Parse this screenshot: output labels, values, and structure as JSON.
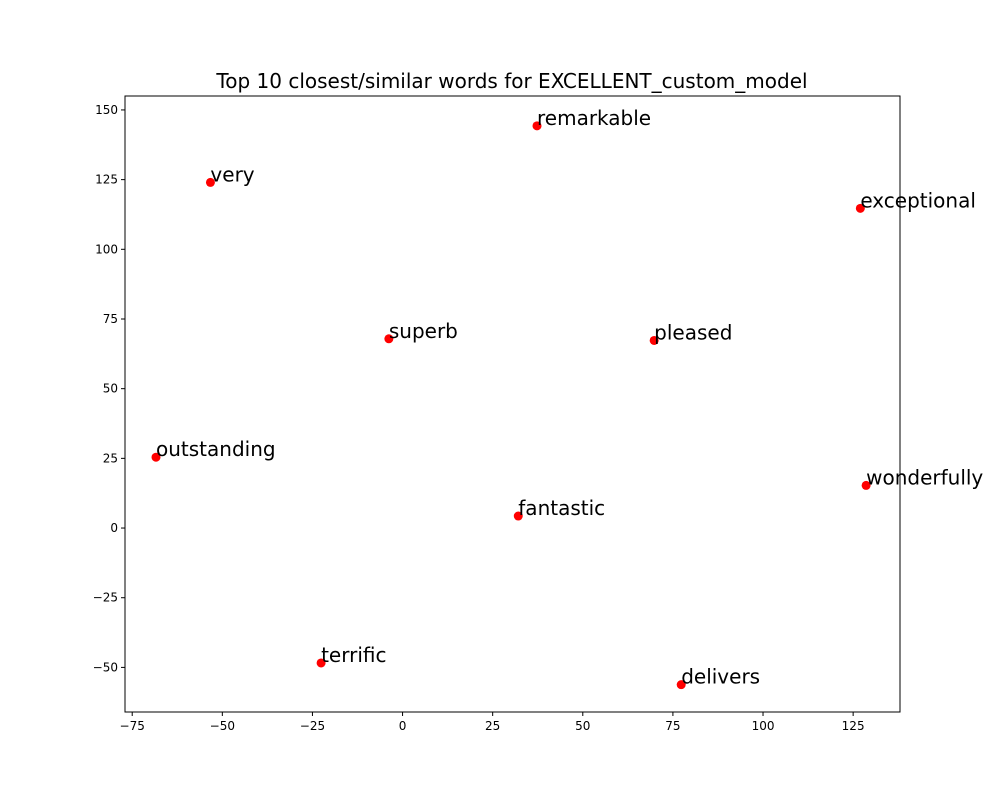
{
  "chart_data": {
    "type": "scatter",
    "title": "Top 10 closest/similar words for EXCELLENT_custom_model",
    "xlabel": "",
    "ylabel": "",
    "xlim": [
      -77,
      138
    ],
    "ylim": [
      -66,
      155
    ],
    "x_ticks": [
      -75,
      -50,
      -25,
      0,
      25,
      50,
      75,
      100,
      125
    ],
    "y_ticks": [
      -50,
      -25,
      0,
      25,
      50,
      75,
      100,
      125,
      150
    ],
    "grid": false,
    "marker_color": "#ff0000",
    "points": [
      {
        "label": "remarkable",
        "x": 37.3,
        "y": 144.3
      },
      {
        "label": "very",
        "x": -53.3,
        "y": 124.0
      },
      {
        "label": "exceptional",
        "x": 127.0,
        "y": 114.7
      },
      {
        "label": "superb",
        "x": -3.8,
        "y": 67.9
      },
      {
        "label": "pleased",
        "x": 69.8,
        "y": 67.3
      },
      {
        "label": "outstanding",
        "x": -68.4,
        "y": 25.4
      },
      {
        "label": "wonderfully",
        "x": 128.6,
        "y": 15.3
      },
      {
        "label": "fantastic",
        "x": 32.1,
        "y": 4.3
      },
      {
        "label": "terrific",
        "x": -22.6,
        "y": -48.4
      },
      {
        "label": "delivers",
        "x": 77.3,
        "y": -56.2
      }
    ]
  }
}
